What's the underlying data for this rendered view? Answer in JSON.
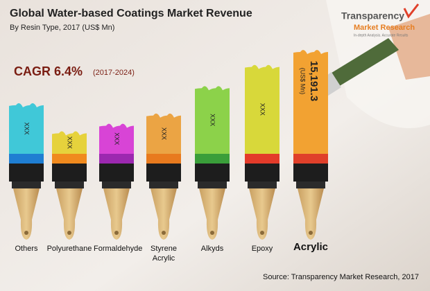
{
  "chart_data": {
    "type": "bar",
    "title": "Global Water-based Coatings Market Revenue",
    "subtitle": "By Resin Type, 2017 (US$ Mn)",
    "cagr_label": "CAGR 6.4%",
    "cagr_period": "(2017-2024)",
    "logo": {
      "name": "Transparency",
      "name2": "Market Research",
      "tagline": "In-depth Analysis. Accurate Results"
    },
    "categories": [
      "Others",
      "Polyurethane",
      "Formaldehyde",
      "Styrene Acrylic",
      "Alkyds",
      "Epoxy",
      "Acrylic"
    ],
    "values": [
      7400,
      3300,
      4400,
      5900,
      9900,
      13000,
      15191.3
    ],
    "value_labels": [
      "XXX",
      "XXX",
      "XXX",
      "XXX",
      "XXX",
      "XXX",
      "15,191.3"
    ],
    "value_unit": "(US$ Mn)",
    "colors": [
      "#40c8d8",
      "#e6d23c",
      "#d844d6",
      "#eba444",
      "#8cd24a",
      "#d8d83a",
      "#f2a232"
    ],
    "band_colors": [
      "#1f7ed2",
      "#f08a1e",
      "#9c28b0",
      "#e87a1e",
      "#3a9e3a",
      "#e33b2a",
      "#e0402a"
    ],
    "source": "Source: Transparency Market Research, 2017"
  }
}
